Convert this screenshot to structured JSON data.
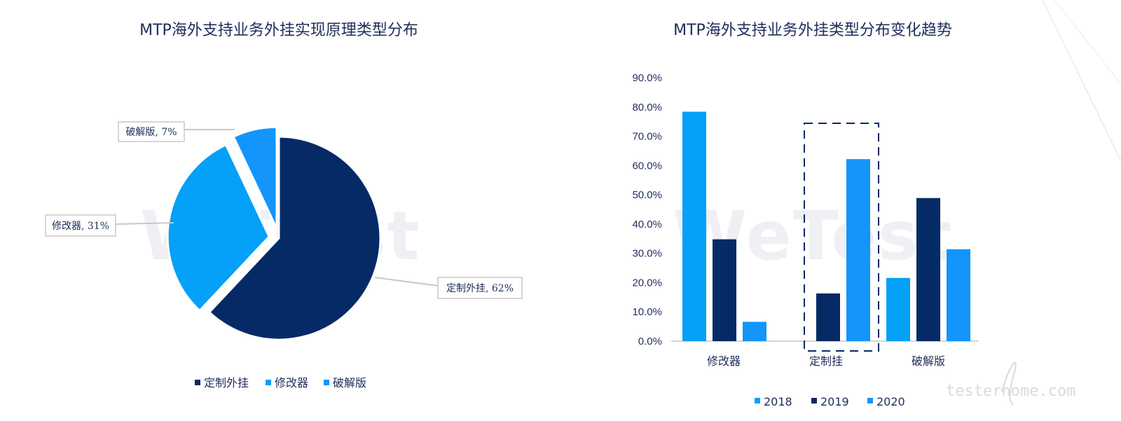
{
  "watermarks": {
    "left": "WeTest",
    "right": "WeTest"
  },
  "brand": {
    "text": "testerhome.com"
  },
  "colors": {
    "dark": "#052a66",
    "mid": "#05a0f7",
    "light": "#1395fb"
  },
  "chart_data": [
    {
      "type": "pie",
      "title": "MTP海外支持业务外挂实现原理类型分布",
      "slices": [
        {
          "name": "定制外挂",
          "value": 62,
          "label": "定制外挂, 62%",
          "color": "#052a66",
          "exploded": false
        },
        {
          "name": "修改器",
          "value": 31,
          "label": "修改器, 31%",
          "color": "#05a0f7",
          "exploded": true
        },
        {
          "name": "破解版",
          "value": 7,
          "label": "破解版, 7%",
          "color": "#1395fb",
          "exploded": true
        }
      ],
      "legend": [
        "定制外挂",
        "修改器",
        "破解版"
      ],
      "legend_position": "bottom"
    },
    {
      "type": "bar",
      "title": "MTP海外支持业务外挂类型分布变化趋势",
      "categories": [
        "修改器",
        "定制挂",
        "破解版"
      ],
      "series": [
        {
          "name": "2018",
          "color": "#05a0f7",
          "values": [
            78.4,
            0,
            21.6
          ]
        },
        {
          "name": "2019",
          "color": "#052a66",
          "values": [
            34.8,
            16.3,
            48.9
          ]
        },
        {
          "name": "2020",
          "color": "#1395fb",
          "values": [
            6.6,
            62.2,
            31.4
          ]
        }
      ],
      "ylim": [
        0,
        90
      ],
      "yticks": [
        "0.0%",
        "10.0%",
        "20.0%",
        "30.0%",
        "40.0%",
        "50.0%",
        "60.0%",
        "70.0%",
        "80.0%",
        "90.0%"
      ],
      "grid": false,
      "highlight_category": "定制挂",
      "legend_position": "bottom"
    }
  ]
}
